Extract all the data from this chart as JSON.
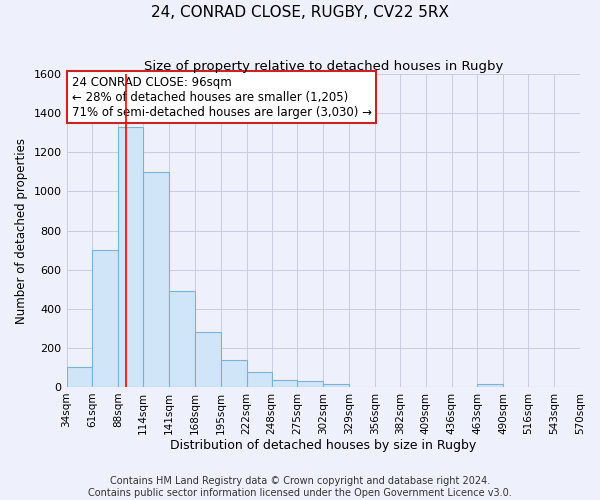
{
  "title": "24, CONRAD CLOSE, RUGBY, CV22 5RX",
  "subtitle": "Size of property relative to detached houses in Rugby",
  "xlabel": "Distribution of detached houses by size in Rugby",
  "ylabel": "Number of detached properties",
  "bin_edges": [
    34,
    61,
    88,
    114,
    141,
    168,
    195,
    222,
    248,
    275,
    302,
    329,
    356,
    382,
    409,
    436,
    463,
    490,
    516,
    543,
    570
  ],
  "bar_heights": [
    100,
    700,
    1330,
    1100,
    490,
    280,
    140,
    75,
    35,
    30,
    15,
    0,
    0,
    0,
    0,
    0,
    15,
    0,
    0,
    0
  ],
  "bar_facecolor": "#d0e5f7",
  "bar_edgecolor": "#7ab3d8",
  "grid_color": "#c8cce0",
  "background_color": "#eef1fb",
  "red_line_x": 96,
  "ylim": [
    0,
    1600
  ],
  "yticks": [
    0,
    200,
    400,
    600,
    800,
    1000,
    1200,
    1400,
    1600
  ],
  "annotation_title": "24 CONRAD CLOSE: 96sqm",
  "annotation_line1": "← 28% of detached houses are smaller (1,205)",
  "annotation_line2": "71% of semi-detached houses are larger (3,030) →",
  "footer_line1": "Contains HM Land Registry data © Crown copyright and database right 2024.",
  "footer_line2": "Contains public sector information licensed under the Open Government Licence v3.0.",
  "title_fontsize": 11,
  "subtitle_fontsize": 9.5,
  "annotation_fontsize": 8.5,
  "footer_fontsize": 7,
  "ylabel_fontsize": 8.5,
  "xlabel_fontsize": 9,
  "ytick_fontsize": 8,
  "xtick_fontsize": 7.5
}
